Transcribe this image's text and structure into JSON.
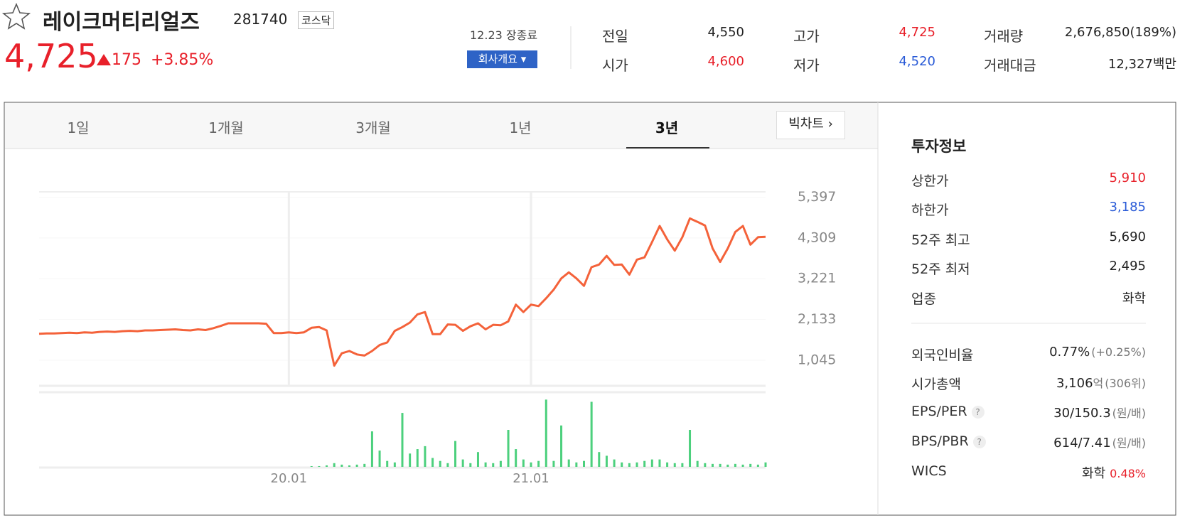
{
  "header": {
    "name": "레이크머티리얼즈",
    "code": "281740",
    "market": "코스닥",
    "price": "4,725",
    "change": "175",
    "change_pct": "+3.85%",
    "status": "12.23 장종료",
    "company_button": "회사개요"
  },
  "quote": [
    {
      "label": "전일",
      "value": "4,550"
    },
    {
      "label": "시가",
      "value": "4,600"
    },
    {
      "label": "고가",
      "value": "4,725"
    },
    {
      "label": "저가",
      "value": "4,520"
    },
    {
      "label": "거래량",
      "value": "2,676,850(189%)"
    },
    {
      "label": "거래대금",
      "value": "12,327백만"
    }
  ],
  "tabs": [
    "1일",
    "1개월",
    "3개월",
    "1년",
    "3년"
  ],
  "active_tab": 4,
  "big_chart": "빅차트",
  "chart_data": {
    "type": "line",
    "color": "#f4623a",
    "categories": [
      null,
      null,
      null,
      null,
      null,
      null,
      null,
      null,
      null,
      null,
      null,
      null,
      null,
      null,
      null,
      null,
      null,
      null,
      null,
      null,
      null,
      null,
      null,
      null,
      null,
      null,
      null,
      null,
      null,
      null,
      null,
      null,
      null,
      "20.01",
      null,
      null,
      null,
      null,
      null,
      null,
      null,
      null,
      null,
      null,
      null,
      null,
      null,
      null,
      null,
      null,
      null,
      null,
      null,
      null,
      null,
      null,
      null,
      null,
      null,
      null,
      null,
      null,
      null,
      null,
      null,
      "21.01",
      null,
      null,
      null,
      null,
      null,
      null,
      null,
      null,
      null,
      null,
      null,
      null,
      null,
      null,
      null,
      null,
      null,
      null,
      null,
      null,
      null,
      null,
      null,
      null,
      null,
      null,
      null,
      null,
      null,
      null,
      null
    ],
    "values": [
      1750,
      1760,
      1760,
      1770,
      1780,
      1770,
      1790,
      1780,
      1800,
      1810,
      1800,
      1820,
      1830,
      1820,
      1840,
      1840,
      1850,
      1860,
      1870,
      1850,
      1840,
      1870,
      1850,
      1900,
      1960,
      2030,
      2030,
      2030,
      2030,
      2030,
      2020,
      1770,
      1770,
      1790,
      1770,
      1790,
      1910,
      1930,
      1840,
      900,
      1230,
      1290,
      1200,
      1170,
      1290,
      1450,
      1520,
      1830,
      1930,
      2050,
      2270,
      2330,
      1740,
      1740,
      2000,
      1990,
      1830,
      1950,
      2030,
      1870,
      1990,
      1980,
      2080,
      2530,
      2330,
      2530,
      2490,
      2700,
      2930,
      3230,
      3390,
      3230,
      3030,
      3530,
      3600,
      3830,
      3590,
      3600,
      3330,
      3730,
      3790,
      4200,
      4630,
      4270,
      3970,
      4330,
      4830,
      4740,
      4640,
      4030,
      3670,
      4030,
      4470,
      4630,
      4130,
      4330,
      4340
    ],
    "ylim": [
      380,
      5540
    ],
    "yticks": [
      {
        "value": 5397,
        "label": "5,397"
      },
      {
        "value": 4309,
        "label": "4,309"
      },
      {
        "value": 3221,
        "label": "3,221"
      },
      {
        "value": 2133,
        "label": "2,133"
      },
      {
        "value": 1045,
        "label": "1,045"
      }
    ],
    "volume": {
      "color": "#4cd07d",
      "ylim": [
        0,
        100
      ],
      "values": [
        0,
        0,
        0,
        0,
        0,
        0,
        0,
        0,
        0,
        0,
        0,
        0,
        0,
        0,
        0,
        0,
        0,
        0,
        0,
        0,
        0,
        0,
        0,
        0,
        0,
        0,
        0,
        0,
        0,
        0,
        0,
        0,
        0,
        0,
        0,
        0,
        1,
        1,
        2,
        5,
        3,
        2,
        3,
        4,
        48,
        22,
        8,
        6,
        73,
        18,
        24,
        28,
        12,
        8,
        5,
        35,
        10,
        5,
        20,
        6,
        5,
        8,
        50,
        24,
        10,
        6,
        8,
        91,
        8,
        56,
        10,
        6,
        8,
        88,
        20,
        15,
        10,
        6,
        5,
        6,
        8,
        10,
        10,
        6,
        5,
        5,
        50,
        8,
        5,
        4,
        4,
        3,
        4,
        3,
        4,
        3,
        6
      ]
    }
  },
  "invest_info": {
    "title": "투자정보",
    "rows": [
      {
        "label": "상한가",
        "value": "5,910"
      },
      {
        "label": "하한가",
        "value": "3,185"
      },
      {
        "label": "52주 최고",
        "value": "5,690"
      },
      {
        "label": "52주 최저",
        "value": "2,495"
      },
      {
        "label": "업종",
        "value": "화학"
      },
      {
        "label": "외국인비율",
        "value": "0.77%",
        "note": "(+0.25%)"
      },
      {
        "label": "시가총액",
        "value": "3,106",
        "unit": "억",
        "note": "(306위)"
      },
      {
        "label": "EPS/PER",
        "help": "?",
        "value": "30/150.3",
        "note": "(원/배)"
      },
      {
        "label": "BPS/PBR",
        "help": "?",
        "value": "614/7.41",
        "note": "(원/배)"
      },
      {
        "label": "WICS",
        "value": "화학",
        "note": "0.48%"
      }
    ]
  }
}
